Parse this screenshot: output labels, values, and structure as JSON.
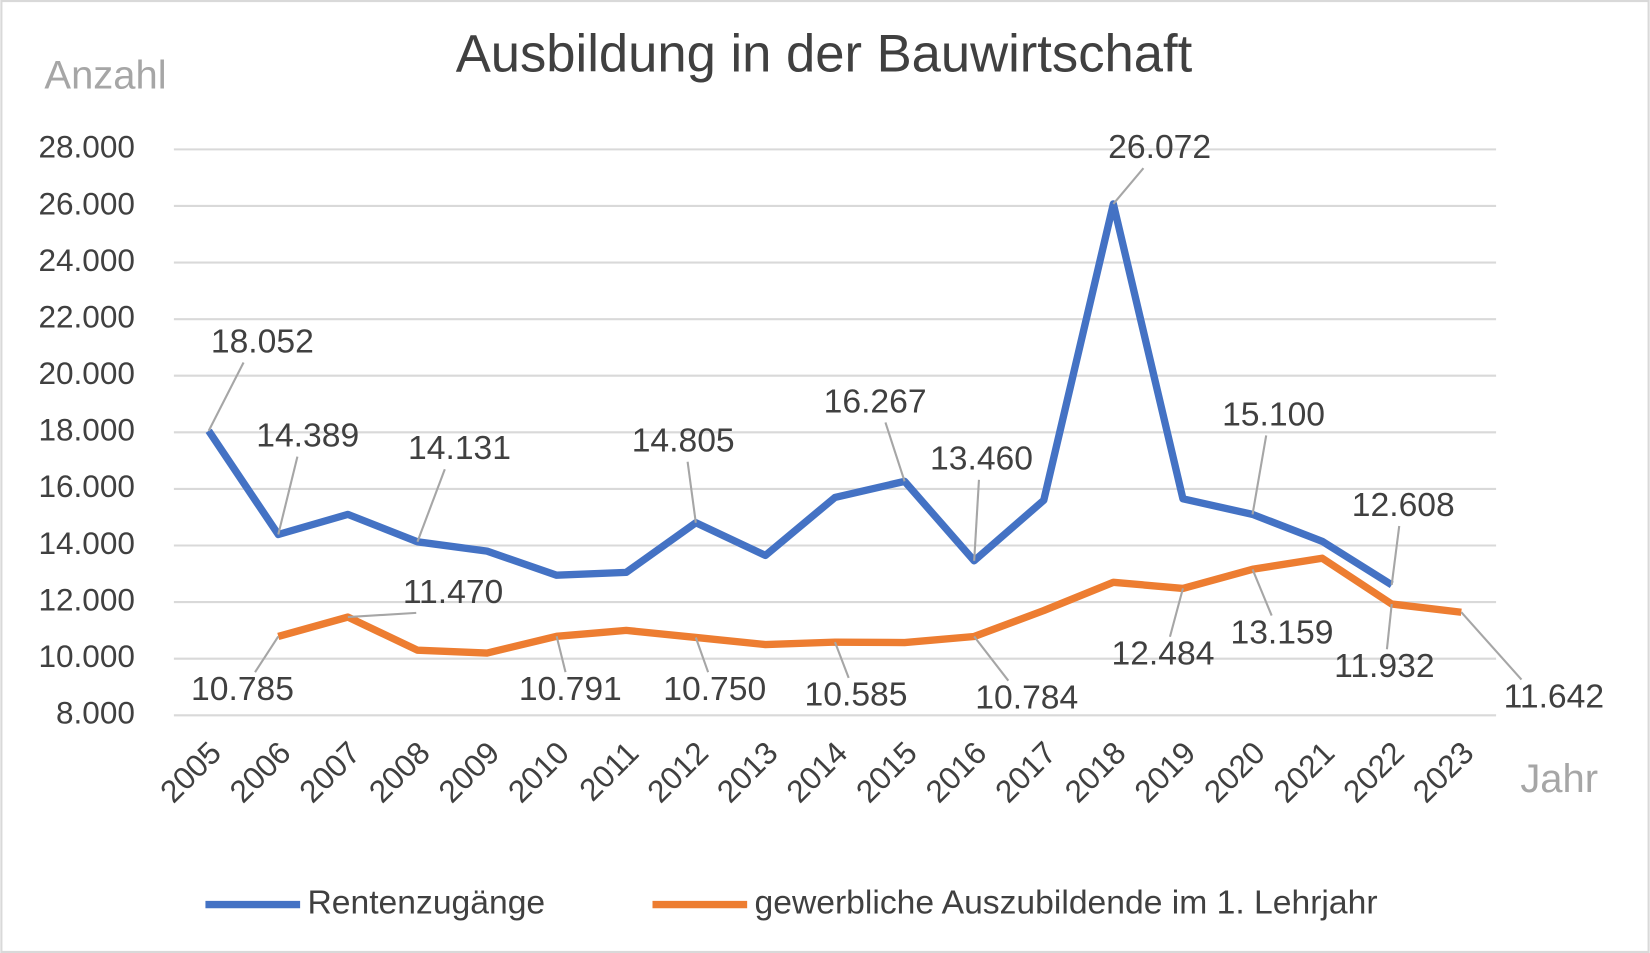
{
  "chart_data": {
    "type": "line",
    "title": "Ausbildung in der Bauwirtschaft",
    "y_label": "Anzahl",
    "x_label": "Jahr",
    "categories": [
      "2005",
      "2006",
      "2007",
      "2008",
      "2009",
      "2010",
      "2011",
      "2012",
      "2013",
      "2014",
      "2015",
      "2016",
      "2017",
      "2018",
      "2019",
      "2020",
      "2021",
      "2022",
      "2023"
    ],
    "series": [
      {
        "name": "Rentenzugänge",
        "color": "#4472c4",
        "values": [
          18052,
          14389,
          15100,
          14131,
          13800,
          12950,
          13050,
          14805,
          13650,
          15700,
          16267,
          13460,
          15600,
          26072,
          15650,
          15100,
          14150,
          12608,
          null
        ],
        "value_labels": [
          "18.052",
          "14.389",
          null,
          "14.131",
          null,
          null,
          null,
          "14.805",
          null,
          null,
          "16.267",
          "13.460",
          null,
          "26.072",
          null,
          "15.100",
          null,
          "12.608",
          null
        ]
      },
      {
        "name": "gewerbliche Auszubildende im 1. Lehrjahr",
        "color": "#ed7d31",
        "values": [
          null,
          10785,
          11470,
          10300,
          10200,
          10791,
          11000,
          10750,
          10500,
          10585,
          10570,
          10784,
          11700,
          12700,
          12484,
          13159,
          13550,
          11932,
          11642
        ],
        "value_labels": [
          null,
          "10.785",
          "11.470",
          null,
          null,
          "10.791",
          null,
          "10.750",
          null,
          "10.585",
          null,
          "10.784",
          null,
          null,
          "12.484",
          "13.159",
          null,
          "11.932",
          "11.642"
        ]
      }
    ],
    "ylim": [
      8000,
      28000
    ],
    "yticks": [
      {
        "value": 8000,
        "label": "8.000"
      },
      {
        "value": 10000,
        "label": "10.000"
      },
      {
        "value": 12000,
        "label": "12.000"
      },
      {
        "value": 14000,
        "label": "14.000"
      },
      {
        "value": 16000,
        "label": "16.000"
      },
      {
        "value": 18000,
        "label": "18.000"
      },
      {
        "value": 20000,
        "label": "20.000"
      },
      {
        "value": 22000,
        "label": "22.000"
      },
      {
        "value": 24000,
        "label": "24.000"
      },
      {
        "value": 26000,
        "label": "26.000"
      },
      {
        "value": 28000,
        "label": "28.000"
      }
    ],
    "grid": true,
    "legend": "bottom"
  }
}
